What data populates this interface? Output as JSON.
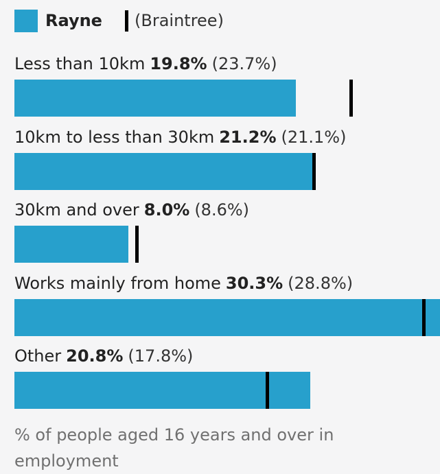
{
  "chart_data": {
    "type": "bar",
    "categories": [
      "Less than 10km",
      "10km to less than 30km",
      "30km and over",
      "Works mainly from home",
      "Other"
    ],
    "series": [
      {
        "name": "Rayne",
        "color": "#27a0cc",
        "values": [
          19.8,
          21.2,
          8.0,
          30.3,
          20.8
        ],
        "value_labels": [
          "19.8%",
          "21.2%",
          "8.0%",
          "30.3%",
          "20.8%"
        ]
      },
      {
        "name": "(Braintree)",
        "color": "#000000",
        "values": [
          23.7,
          21.1,
          8.6,
          28.8,
          17.8
        ],
        "value_labels": [
          "(23.7%)",
          "(21.1%)",
          "(8.6%)",
          "(28.8%)",
          "(17.8%)"
        ]
      }
    ],
    "x_label": "% of people aged 16 years and over in employment"
  }
}
